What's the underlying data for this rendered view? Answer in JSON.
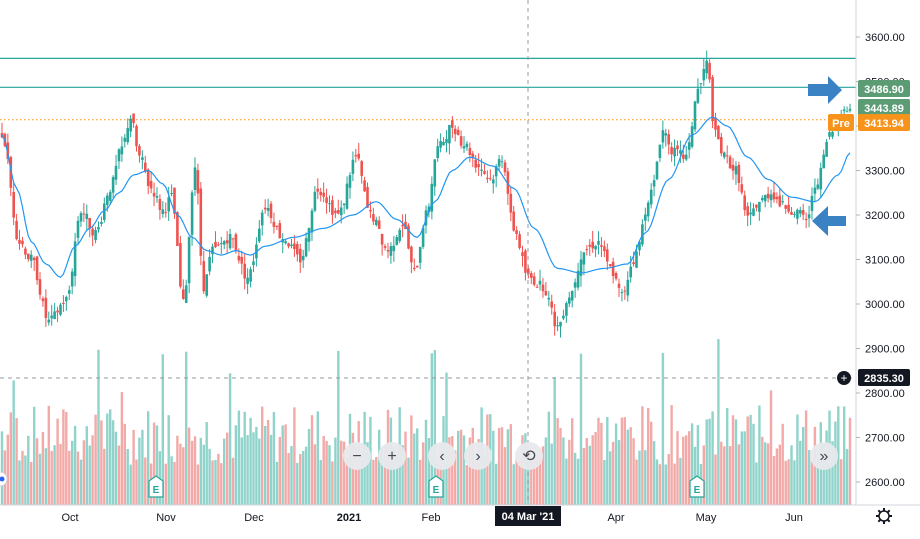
{
  "chart_data": {
    "type": "candlestick",
    "price_axis": {
      "range": [
        2560,
        3650
      ],
      "ticks": [
        "3600.00",
        "3500.00",
        "3400.00",
        "3300.00",
        "3200.00",
        "3100.00",
        "3000.00",
        "2900.00",
        "2800.00",
        "2700.00",
        "2600.00"
      ]
    },
    "time_axis": {
      "ticks": [
        "Oct",
        "Nov",
        "Dec",
        "2021",
        "Feb",
        "Apr",
        "May",
        "Jun"
      ],
      "crosshair_label": "04 Mar '21"
    },
    "series": [
      {
        "name": "",
        "type": "candlestick",
        "up_color": "#26a69a",
        "down_color": "#ef5350"
      },
      {
        "name": "",
        "type": "moving-average",
        "color": "#2196f3"
      },
      {
        "name": "",
        "type": "volume",
        "up_color": "#8fd3cb",
        "down_color": "#f2a9a7"
      }
    ],
    "horizontal_lines": [
      3552,
      3486.9
    ],
    "dotted_line": 3413.94,
    "price_labels": [
      {
        "text": "3486.90",
        "bg": "#5b9c74"
      },
      {
        "text": "3443.89",
        "bg": "#5b9c74"
      },
      {
        "text": "3413.94",
        "bg": "#f7931a",
        "prefix": "Pre"
      },
      {
        "text": "2835.30",
        "bg": "#131722"
      }
    ],
    "anchors": [
      [
        0,
        3380
      ],
      [
        6,
        3140
      ],
      [
        10,
        3100
      ],
      [
        16,
        2960
      ],
      [
        22,
        3010
      ],
      [
        27,
        3210
      ],
      [
        32,
        3160
      ],
      [
        37,
        3260
      ],
      [
        41,
        3350
      ],
      [
        44,
        3420
      ],
      [
        47,
        3330
      ],
      [
        51,
        3260
      ],
      [
        55,
        3210
      ],
      [
        58,
        3240
      ],
      [
        62,
        3000
      ],
      [
        66,
        3310
      ],
      [
        69,
        3040
      ],
      [
        72,
        3120
      ],
      [
        78,
        3150
      ],
      [
        84,
        3060
      ],
      [
        90,
        3220
      ],
      [
        96,
        3150
      ],
      [
        102,
        3100
      ],
      [
        108,
        3260
      ],
      [
        115,
        3200
      ],
      [
        121,
        3330
      ],
      [
        126,
        3200
      ],
      [
        132,
        3120
      ],
      [
        137,
        3180
      ],
      [
        141,
        3070
      ],
      [
        145,
        3200
      ],
      [
        149,
        3350
      ],
      [
        154,
        3400
      ],
      [
        158,
        3360
      ],
      [
        163,
        3310
      ],
      [
        167,
        3280
      ],
      [
        171,
        3330
      ],
      [
        175,
        3170
      ],
      [
        180,
        3060
      ],
      [
        185,
        3040
      ],
      [
        190,
        2950
      ],
      [
        194,
        3020
      ],
      [
        199,
        3120
      ],
      [
        204,
        3140
      ],
      [
        208,
        3080
      ],
      [
        212,
        3020
      ],
      [
        216,
        3100
      ],
      [
        222,
        3250
      ],
      [
        226,
        3390
      ],
      [
        230,
        3340
      ],
      [
        234,
        3330
      ],
      [
        238,
        3480
      ],
      [
        241,
        3540
      ],
      [
        244,
        3380
      ],
      [
        247,
        3330
      ],
      [
        251,
        3300
      ],
      [
        255,
        3190
      ],
      [
        259,
        3230
      ],
      [
        263,
        3250
      ],
      [
        267,
        3220
      ],
      [
        271,
        3210
      ],
      [
        275,
        3190
      ],
      [
        279,
        3280
      ],
      [
        283,
        3380
      ],
      [
        287,
        3430
      ],
      [
        290,
        3440
      ]
    ],
    "ma_anchors": [
      [
        0,
        3380
      ],
      [
        5,
        3260
      ],
      [
        10,
        3140
      ],
      [
        15,
        3090
      ],
      [
        20,
        3060
      ],
      [
        25,
        3130
      ],
      [
        30,
        3170
      ],
      [
        35,
        3210
      ],
      [
        40,
        3250
      ],
      [
        45,
        3290
      ],
      [
        50,
        3300
      ],
      [
        55,
        3270
      ],
      [
        60,
        3200
      ],
      [
        65,
        3150
      ],
      [
        70,
        3120
      ],
      [
        75,
        3110
      ],
      [
        80,
        3120
      ],
      [
        85,
        3110
      ],
      [
        90,
        3130
      ],
      [
        100,
        3150
      ],
      [
        110,
        3170
      ],
      [
        120,
        3200
      ],
      [
        128,
        3230
      ],
      [
        135,
        3190
      ],
      [
        142,
        3150
      ],
      [
        148,
        3230
      ],
      [
        154,
        3300
      ],
      [
        160,
        3330
      ],
      [
        168,
        3310
      ],
      [
        175,
        3260
      ],
      [
        182,
        3170
      ],
      [
        190,
        3080
      ],
      [
        198,
        3070
      ],
      [
        206,
        3080
      ],
      [
        214,
        3090
      ],
      [
        220,
        3160
      ],
      [
        228,
        3280
      ],
      [
        236,
        3380
      ],
      [
        243,
        3420
      ],
      [
        248,
        3400
      ],
      [
        255,
        3330
      ],
      [
        262,
        3280
      ],
      [
        270,
        3240
      ],
      [
        278,
        3230
      ],
      [
        286,
        3290
      ],
      [
        290,
        3340
      ]
    ],
    "n_bars": 291
  },
  "controls": {
    "zoom_out": "−",
    "zoom_in": "+",
    "scroll_left": "‹",
    "scroll_right": "›",
    "reset": "⟲",
    "scroll_to_end": "»",
    "add": "+"
  },
  "event_markers": [
    "E",
    "E",
    "E"
  ],
  "icons": {
    "settings": "gear-icon",
    "arrow_color": "#3b82c4"
  }
}
